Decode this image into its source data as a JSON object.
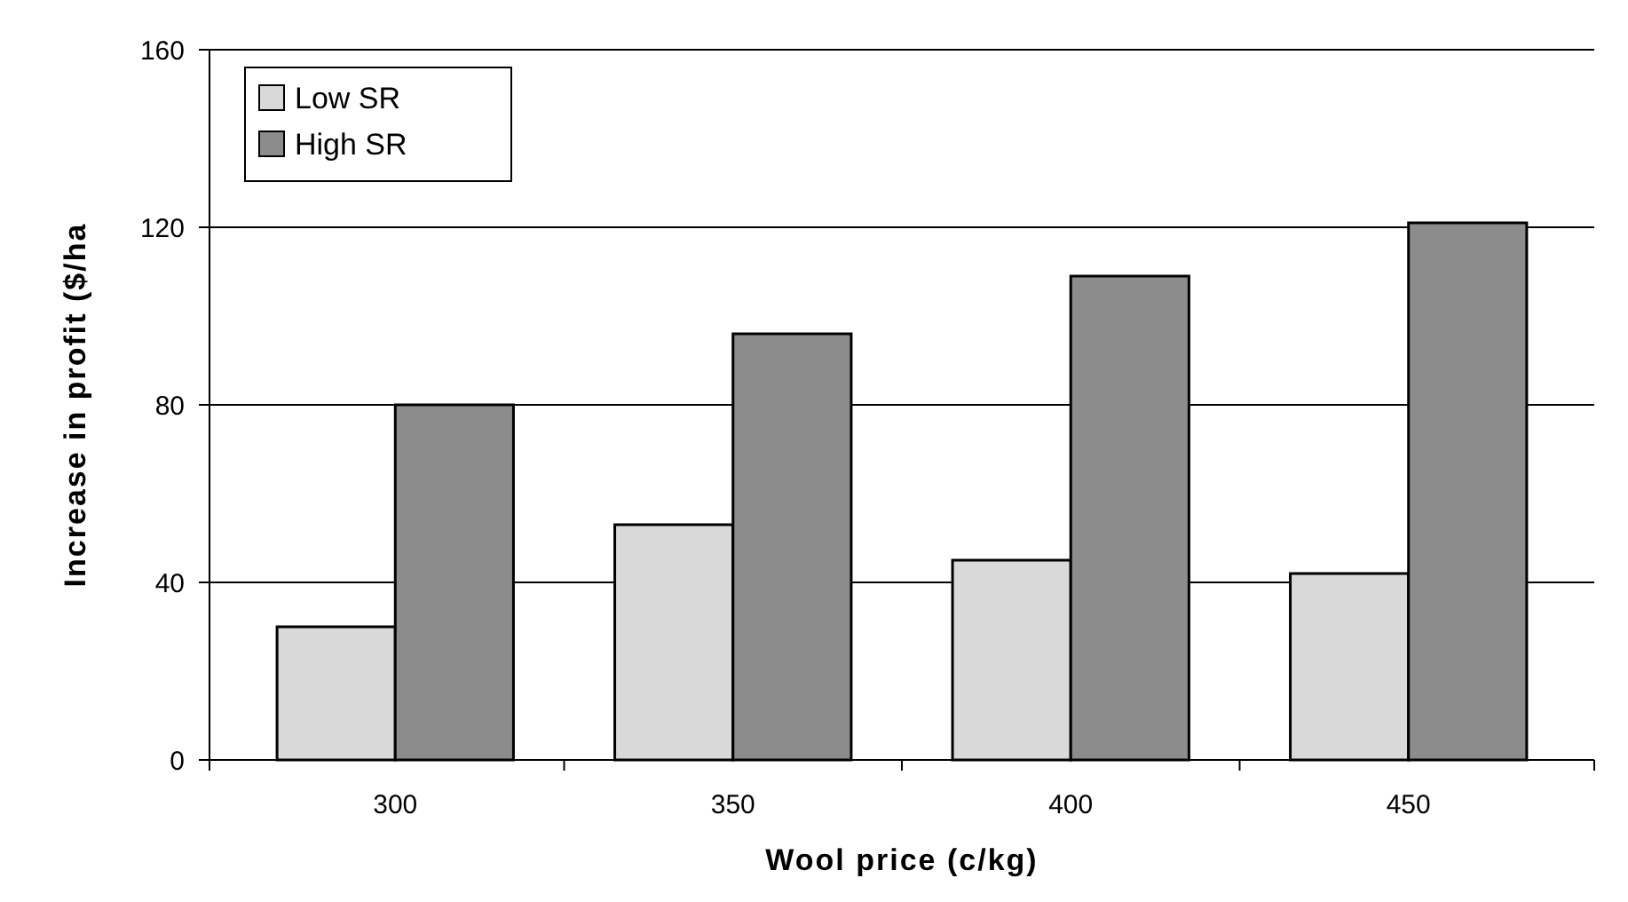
{
  "chart_data": {
    "type": "bar",
    "xlabel": "Wool price (c/kg)",
    "ylabel": "Increase in profit ($/ha",
    "categories": [
      "300",
      "350",
      "400",
      "450"
    ],
    "series": [
      {
        "name": "Low SR",
        "color": "#d9d9d9",
        "values": [
          30,
          53,
          45,
          42
        ]
      },
      {
        "name": "High SR",
        "color": "#8c8c8c",
        "values": [
          80,
          96,
          109,
          121
        ]
      }
    ],
    "ylim": [
      0,
      160
    ],
    "yticks": [
      0,
      40,
      80,
      120,
      160
    ],
    "grid": "y",
    "legend": "top left"
  }
}
